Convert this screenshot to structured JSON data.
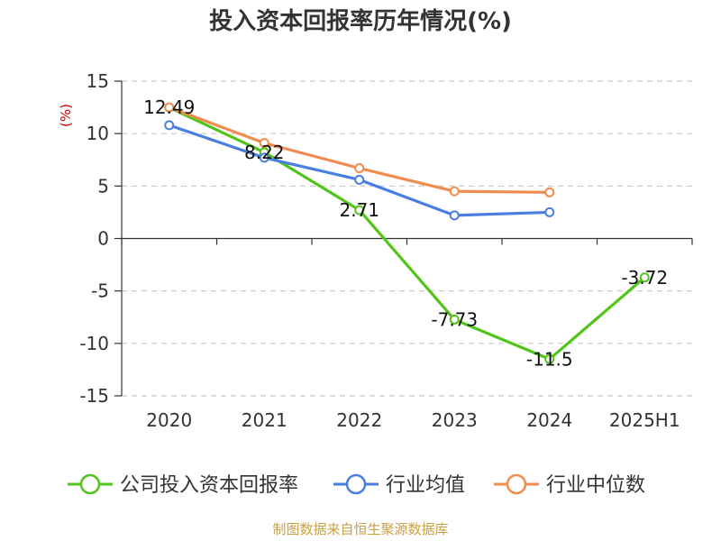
{
  "chart_data": {
    "type": "line",
    "title": "投入资本回报率历年情况(%)",
    "ylabel": "(%)",
    "categories": [
      "2020",
      "2021",
      "2022",
      "2023",
      "2024",
      "2025H1"
    ],
    "ylim": [
      -15,
      15
    ],
    "yticks": [
      15,
      10,
      5,
      0,
      -5,
      -10,
      -15
    ],
    "grid": true,
    "legend_position": "bottom",
    "series": [
      {
        "name": "公司投入资本回报率",
        "color": "#52c41a",
        "values": [
          12.49,
          8.22,
          2.71,
          -7.73,
          -11.5,
          -3.72
        ],
        "labels": [
          "12.49",
          "8.22",
          "2.71",
          "-7.73",
          "-11.5",
          "-3.72"
        ]
      },
      {
        "name": "行业均值",
        "color": "#4a7fe0",
        "values": [
          10.8,
          7.7,
          5.6,
          2.2,
          2.5,
          null
        ]
      },
      {
        "name": "行业中位数",
        "color": "#f08c4e",
        "values": [
          12.5,
          9.1,
          6.7,
          4.5,
          4.4,
          null
        ]
      }
    ]
  },
  "footer": {
    "source": "制图数据来自恒生聚源数据库"
  }
}
